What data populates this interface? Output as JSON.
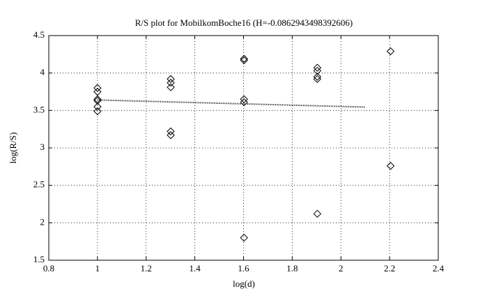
{
  "chart_data": {
    "type": "scatter",
    "title": "R/S plot for MobilkomBoche16 (H=-0.0862943498392606)",
    "x_label": "log(d)",
    "y_label": "log(R/S)",
    "series": [
      {
        "mode": "markers",
        "marker": "diamond",
        "color": "#000000",
        "x": [
          1,
          1,
          1,
          1,
          1,
          1,
          1.301,
          1.301,
          1.301,
          1.301,
          1.301,
          1.602,
          1.602,
          1.602,
          1.602,
          1.602,
          1.903,
          1.903,
          1.903,
          1.903,
          1.903,
          2.204,
          2.204
        ],
        "values": [
          3.8,
          3.75,
          3.65,
          3.63,
          3.55,
          3.49,
          3.92,
          3.87,
          3.81,
          3.22,
          3.17,
          4.19,
          4.17,
          3.65,
          3.61,
          1.8,
          4.07,
          4.03,
          3.95,
          3.92,
          2.12,
          4.29,
          2.76
        ]
      },
      {
        "mode": "line",
        "line_style": "dotted",
        "color": "#000000",
        "x": [
          1,
          2.1
        ],
        "values": [
          3.64,
          3.545
        ]
      }
    ],
    "xlim": [
      0.8,
      2.4
    ],
    "xticks": [
      0.8,
      1,
      1.2,
      1.4,
      1.6,
      1.8,
      2,
      2.2,
      2.4
    ],
    "ylim": [
      1.5,
      4.5
    ],
    "yticks": [
      1.5,
      2,
      2.5,
      3,
      3.5,
      4,
      4.5
    ],
    "grid": true
  }
}
